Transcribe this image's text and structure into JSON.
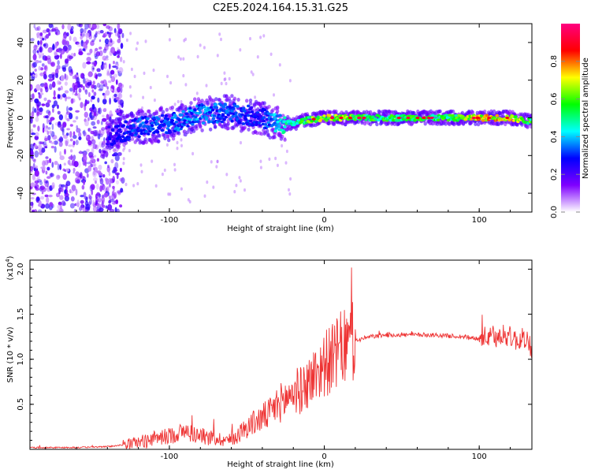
{
  "title": "C2E5.2024.164.15.31.G25",
  "chart_data": [
    {
      "type": "heatmap",
      "xlabel": "Height of straight line (km)",
      "ylabel": "Frequency (Hz)",
      "xlim": [
        -190,
        134
      ],
      "ylim": [
        -50,
        50
      ],
      "xticks": [
        -100,
        0,
        100
      ],
      "xtick_labels": [
        "-100",
        "0",
        "100"
      ],
      "yticks": [
        -40,
        -20,
        0,
        20,
        40
      ],
      "ytick_labels": [
        "-40",
        "-20",
        "0",
        "20",
        "40"
      ],
      "colorbar": {
        "label": "Normalized spectral amplitude",
        "range": [
          0,
          1
        ],
        "ticks": [
          0,
          0.2,
          0.4,
          0.6,
          0.8
        ],
        "tick_labels": [
          "0.0",
          "0.2",
          "0.4",
          "0.6",
          "0.8"
        ],
        "colormap": [
          "#ffffff",
          "#7f00ff",
          "#0000ff",
          "#00ffff",
          "#00ff00",
          "#ffff00",
          "#ff0000",
          "#ff0080"
        ]
      },
      "ridge": {
        "x": [
          -140,
          -120,
          -100,
          -80,
          -60,
          -40,
          -30,
          -20,
          -10,
          0,
          20,
          40,
          60,
          80,
          100,
          120,
          134
        ],
        "y": [
          -10,
          -5,
          -3,
          2,
          3,
          0,
          -3,
          -3,
          -1,
          0,
          0,
          0,
          0,
          0,
          0,
          0,
          -2
        ],
        "amplitude": [
          0.25,
          0.35,
          0.35,
          0.4,
          0.35,
          0.3,
          0.45,
          0.55,
          0.65,
          0.75,
          0.65,
          0.6,
          0.6,
          0.6,
          0.8,
          0.8,
          0.6
        ]
      },
      "noise_region": {
        "x": [
          -190,
          -130
        ],
        "y": [
          -50,
          50
        ],
        "amplitude": 0.15
      }
    },
    {
      "type": "line",
      "xlabel": "Height of straight line (km)",
      "ylabel": "SNR (10 * v/v)",
      "yscale_label": "(x10",
      "yscale_exp": "4",
      "yscale_suffix": ")",
      "xlim": [
        -190,
        134
      ],
      "ylim": [
        0,
        2.1
      ],
      "xticks": [
        -100,
        0,
        100
      ],
      "xtick_labels": [
        "-100",
        "0",
        "100"
      ],
      "yticks": [
        0.5,
        1.0,
        1.5,
        2.0
      ],
      "ytick_labels": [
        "0.5",
        "1.0",
        "1.5",
        "2.0"
      ],
      "color": "#ee3333",
      "series": [
        {
          "x": [
            -190,
            -160,
            -140,
            -130,
            -120,
            -110,
            -100,
            -90,
            -80,
            -70,
            -60,
            -50,
            -40,
            -35,
            -30,
            -25,
            -20,
            -15,
            -10,
            -5,
            0,
            5,
            10,
            15,
            20,
            25,
            30,
            40,
            50,
            60,
            70,
            80,
            90,
            100,
            105,
            110,
            115,
            120,
            125,
            130,
            134
          ],
          "y": [
            0.02,
            0.02,
            0.03,
            0.05,
            0.08,
            0.12,
            0.15,
            0.2,
            0.15,
            0.12,
            0.1,
            0.25,
            0.35,
            0.4,
            0.5,
            0.55,
            0.65,
            0.65,
            0.75,
            0.85,
            0.95,
            1.0,
            1.1,
            1.15,
            1.2,
            1.23,
            1.25,
            1.27,
            1.27,
            1.27,
            1.27,
            1.26,
            1.25,
            1.23,
            1.25,
            1.22,
            1.28,
            1.25,
            1.2,
            1.25,
            1.1
          ]
        }
      ]
    }
  ]
}
